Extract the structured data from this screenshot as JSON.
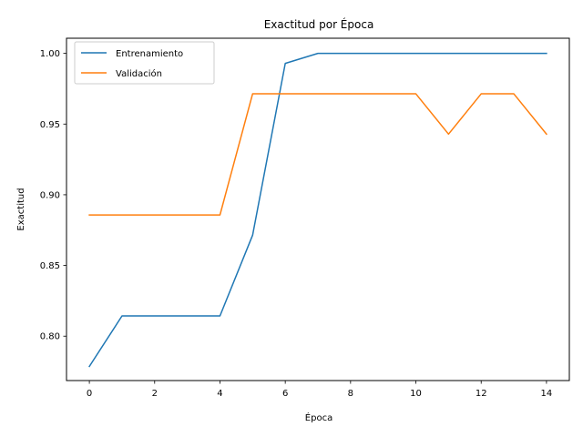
{
  "chart_data": {
    "type": "line",
    "title": "Exactitud por Época",
    "xlabel": "Época",
    "ylabel": "Exactitud",
    "x": [
      0,
      1,
      2,
      3,
      4,
      5,
      6,
      7,
      8,
      9,
      10,
      11,
      12,
      13,
      14
    ],
    "xlim": [
      -0.7,
      14.7
    ],
    "ylim": [
      0.7686,
      1.0107
    ],
    "xticks": [
      0,
      2,
      4,
      6,
      8,
      10,
      12,
      14
    ],
    "xtick_labels": [
      "0",
      "2",
      "4",
      "6",
      "8",
      "10",
      "12",
      "14"
    ],
    "yticks": [
      0.8,
      0.85,
      0.9,
      0.95,
      1.0
    ],
    "ytick_labels": [
      "0.80",
      "0.85",
      "0.90",
      "0.95",
      "1.00"
    ],
    "grid": false,
    "legend_position": "top-left",
    "series": [
      {
        "name": "Entrenamiento",
        "color": "#1f77b4",
        "values": [
          0.7786,
          0.8143,
          0.8143,
          0.8143,
          0.8143,
          0.8714,
          0.9929,
          1.0,
          1.0,
          1.0,
          1.0,
          1.0,
          1.0,
          1.0,
          1.0
        ]
      },
      {
        "name": "Validación",
        "color": "#ff7f0e",
        "values": [
          0.8857,
          0.8857,
          0.8857,
          0.8857,
          0.8857,
          0.9714,
          0.9714,
          0.9714,
          0.9714,
          0.9714,
          0.9714,
          0.9429,
          0.9714,
          0.9714,
          0.9429
        ]
      }
    ]
  }
}
